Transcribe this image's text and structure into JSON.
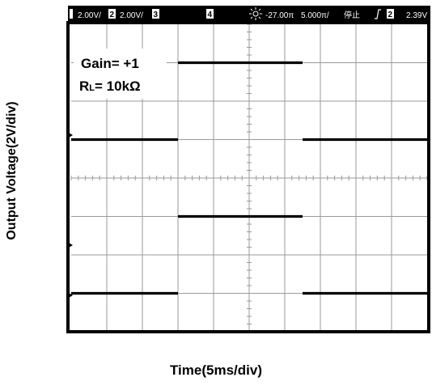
{
  "header": {
    "ch1_scale": "2.00V/",
    "ch2_badge": "2",
    "ch2_scale": "2.00V/",
    "ch3_badge": "3",
    "ch4_badge": "4",
    "trigger_pos": "-27.00π",
    "timebase": "5.000π/",
    "run_state": "停止",
    "trig_ch": "2",
    "trig_level": "2.39V"
  },
  "annotation": {
    "gain": "Gain= +1",
    "rl_prefix": "R",
    "rl_sub": "L",
    "rl_value": "= 10kΩ"
  },
  "labels": {
    "y": "Output Voltage(2V/div)",
    "x": "Time(5ms/div)"
  },
  "colors": {
    "screen_bg": "#ffffff",
    "grid": "#9a9a9a",
    "trace": "#000000",
    "header_bg": "#000000",
    "header_text": "#ffffff"
  },
  "chart_data": {
    "type": "line",
    "xlabel": "Time(5ms/div)",
    "ylabel": "Output Voltage(2V/div)",
    "x_unit": "div",
    "y_unit": "div",
    "xlim": [
      0,
      10
    ],
    "ylim": [
      -4,
      4
    ],
    "grid": true,
    "series": [
      {
        "x": [
          0,
          3,
          3,
          6.5,
          6.5,
          10
        ],
        "y": [
          1,
          1,
          3,
          3,
          1,
          1
        ]
      },
      {
        "x": [
          0,
          3,
          3,
          6.5,
          6.5,
          10
        ],
        "y": [
          -3,
          -3,
          -1,
          -1,
          -3,
          -3
        ]
      }
    ]
  }
}
